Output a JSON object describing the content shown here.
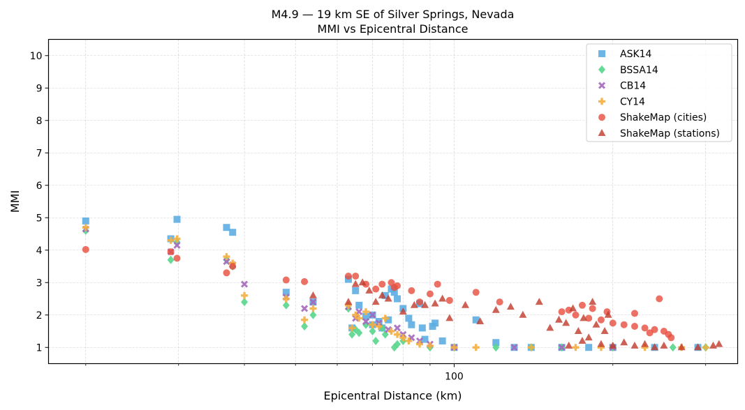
{
  "chart_data": {
    "type": "scatter",
    "title": "M4.9 — 19 km SE of Silver Springs, Nevada",
    "subtitle": "MMI vs Epicentral Distance",
    "xlabel": "Epicentral Distance (km)",
    "ylabel": "MMI",
    "xscale": "log",
    "xlim": [
      17,
      345
    ],
    "ylim": [
      0.5,
      10.5
    ],
    "xticks_major": [
      100
    ],
    "xtick_labels": [
      "100"
    ],
    "xticks_minor": [
      20,
      30,
      40,
      50,
      60,
      70,
      80,
      90,
      200,
      300
    ],
    "yticks": [
      1,
      2,
      3,
      4,
      5,
      6,
      7,
      8,
      9,
      10
    ],
    "ytick_labels": [
      "1",
      "2",
      "3",
      "4",
      "5",
      "6",
      "7",
      "8",
      "9",
      "10"
    ],
    "grid": true,
    "legend_position": "top-right",
    "series": [
      {
        "name": "ASK14",
        "marker": "square",
        "color": "#5DADE2",
        "points": [
          [
            20,
            4.9
          ],
          [
            29,
            4.35
          ],
          [
            29.8,
            4.95
          ],
          [
            37,
            4.7
          ],
          [
            38,
            4.55
          ],
          [
            48,
            2.7
          ],
          [
            54,
            2.4
          ],
          [
            63,
            3.1
          ],
          [
            65,
            2.75
          ],
          [
            66,
            2.3
          ],
          [
            68,
            1.95
          ],
          [
            70,
            1.7
          ],
          [
            72,
            1.8
          ],
          [
            73,
            1.6
          ],
          [
            74,
            2.6
          ],
          [
            75,
            1.85
          ],
          [
            77,
            2.7
          ],
          [
            78,
            2.5
          ],
          [
            80,
            2.2
          ],
          [
            82,
            1.9
          ],
          [
            83,
            1.7
          ],
          [
            86,
            2.35
          ],
          [
            87,
            1.6
          ],
          [
            88,
            1.25
          ],
          [
            91,
            1.65
          ],
          [
            92,
            1.75
          ],
          [
            95,
            1.2
          ],
          [
            100,
            1.0
          ],
          [
            110,
            1.85
          ],
          [
            120,
            1.15
          ],
          [
            64,
            1.6
          ],
          [
            70,
            2.0
          ],
          [
            76,
            2.8
          ],
          [
            130,
            1.0
          ],
          [
            140,
            1.0
          ],
          [
            160,
            1.0
          ],
          [
            180,
            1.0
          ],
          [
            200,
            1.0
          ],
          [
            240,
            1.0
          ],
          [
            290,
            1.0
          ]
        ]
      },
      {
        "name": "BSSA14",
        "marker": "diamond",
        "color": "#58D68D",
        "points": [
          [
            20,
            4.6
          ],
          [
            29,
            3.7
          ],
          [
            29.8,
            4.25
          ],
          [
            37,
            3.7
          ],
          [
            38,
            3.5
          ],
          [
            40,
            2.4
          ],
          [
            48,
            2.3
          ],
          [
            52,
            1.65
          ],
          [
            54,
            2.0
          ],
          [
            63,
            2.2
          ],
          [
            64,
            1.4
          ],
          [
            65,
            1.55
          ],
          [
            66,
            1.45
          ],
          [
            68,
            1.7
          ],
          [
            70,
            1.5
          ],
          [
            71,
            1.2
          ],
          [
            73,
            1.6
          ],
          [
            74,
            1.4
          ],
          [
            77,
            1.0
          ],
          [
            78,
            1.1
          ],
          [
            80,
            1.2
          ],
          [
            90,
            1.0
          ],
          [
            100,
            1.0
          ],
          [
            120,
            1.0
          ],
          [
            140,
            1.0
          ],
          [
            160,
            1.0
          ],
          [
            200,
            1.0
          ],
          [
            260,
            1.0
          ],
          [
            300,
            1.0
          ]
        ]
      },
      {
        "name": "CB14",
        "marker": "x",
        "color": "#A569BD",
        "points": [
          [
            20,
            4.65
          ],
          [
            29,
            3.95
          ],
          [
            29.8,
            4.15
          ],
          [
            37,
            3.65
          ],
          [
            38,
            3.55
          ],
          [
            40,
            2.95
          ],
          [
            48,
            2.55
          ],
          [
            52,
            2.2
          ],
          [
            54,
            2.4
          ],
          [
            63,
            2.25
          ],
          [
            65,
            1.9
          ],
          [
            66,
            2.1
          ],
          [
            68,
            1.8
          ],
          [
            70,
            2.0
          ],
          [
            72,
            1.75
          ],
          [
            75,
            1.55
          ],
          [
            78,
            1.6
          ],
          [
            80,
            1.4
          ],
          [
            83,
            1.3
          ],
          [
            86,
            1.2
          ],
          [
            90,
            1.1
          ],
          [
            100,
            1.0
          ],
          [
            130,
            1.0
          ],
          [
            160,
            1.0
          ],
          [
            200,
            1.0
          ]
        ]
      },
      {
        "name": "CY14",
        "marker": "plus",
        "color": "#F5B041",
        "points": [
          [
            20,
            4.7
          ],
          [
            29,
            4.3
          ],
          [
            29.8,
            4.35
          ],
          [
            37,
            3.8
          ],
          [
            38,
            3.6
          ],
          [
            40,
            2.6
          ],
          [
            48,
            2.5
          ],
          [
            52,
            1.85
          ],
          [
            54,
            2.2
          ],
          [
            63,
            2.3
          ],
          [
            64,
            1.6
          ],
          [
            65,
            2.0
          ],
          [
            66,
            1.9
          ],
          [
            68,
            2.1
          ],
          [
            70,
            1.7
          ],
          [
            72,
            1.65
          ],
          [
            74,
            1.9
          ],
          [
            76,
            1.5
          ],
          [
            78,
            1.4
          ],
          [
            80,
            1.3
          ],
          [
            82,
            1.2
          ],
          [
            86,
            1.1
          ],
          [
            90,
            1.05
          ],
          [
            100,
            1.0
          ],
          [
            110,
            1.0
          ],
          [
            140,
            1.0
          ],
          [
            170,
            1.0
          ],
          [
            190,
            1.0
          ],
          [
            230,
            1.0
          ],
          [
            270,
            1.0
          ],
          [
            300,
            1.0
          ]
        ]
      },
      {
        "name": "ShakeMap (cities)",
        "marker": "circle",
        "color": "#E74C3C",
        "points": [
          [
            20,
            4.02
          ],
          [
            29,
            3.95
          ],
          [
            29.8,
            3.75
          ],
          [
            37,
            3.3
          ],
          [
            38,
            3.5
          ],
          [
            48,
            3.08
          ],
          [
            52,
            3.03
          ],
          [
            63,
            3.2
          ],
          [
            65,
            3.2
          ],
          [
            68,
            2.95
          ],
          [
            71,
            2.8
          ],
          [
            73,
            2.95
          ],
          [
            76,
            3.0
          ],
          [
            77,
            2.85
          ],
          [
            78,
            2.9
          ],
          [
            83,
            2.75
          ],
          [
            86,
            2.4
          ],
          [
            90,
            2.65
          ],
          [
            93,
            2.95
          ],
          [
            98,
            2.45
          ],
          [
            110,
            2.7
          ],
          [
            122,
            2.4
          ],
          [
            160,
            2.1
          ],
          [
            165,
            2.15
          ],
          [
            170,
            2.0
          ],
          [
            180,
            1.9
          ],
          [
            190,
            1.85
          ],
          [
            200,
            1.75
          ],
          [
            210,
            1.7
          ],
          [
            220,
            1.65
          ],
          [
            230,
            1.6
          ],
          [
            240,
            1.55
          ],
          [
            245,
            2.5
          ],
          [
            250,
            1.5
          ],
          [
            255,
            1.4
          ],
          [
            258,
            1.3
          ],
          [
            220,
            2.05
          ],
          [
            195,
            2.1
          ],
          [
            175,
            2.3
          ],
          [
            183,
            2.2
          ],
          [
            235,
            1.45
          ]
        ]
      },
      {
        "name": "ShakeMap (stations)",
        "marker": "triangle",
        "color": "#C0392B",
        "points": [
          [
            54,
            2.6
          ],
          [
            63,
            2.4
          ],
          [
            65,
            2.95
          ],
          [
            67,
            3.0
          ],
          [
            69,
            2.75
          ],
          [
            71,
            2.4
          ],
          [
            73,
            2.6
          ],
          [
            75,
            2.5
          ],
          [
            80,
            2.1
          ],
          [
            84,
            2.3
          ],
          [
            88,
            2.3
          ],
          [
            92,
            2.35
          ],
          [
            95,
            2.5
          ],
          [
            98,
            1.9
          ],
          [
            105,
            2.3
          ],
          [
            112,
            1.8
          ],
          [
            120,
            2.15
          ],
          [
            128,
            2.25
          ],
          [
            135,
            2.0
          ],
          [
            145,
            2.4
          ],
          [
            152,
            1.6
          ],
          [
            158,
            1.85
          ],
          [
            163,
            1.75
          ],
          [
            168,
            2.2
          ],
          [
            172,
            1.5
          ],
          [
            176,
            1.9
          ],
          [
            180,
            1.3
          ],
          [
            183,
            2.4
          ],
          [
            186,
            1.7
          ],
          [
            190,
            1.1
          ],
          [
            193,
            1.5
          ],
          [
            196,
            2.0
          ],
          [
            200,
            1.05
          ],
          [
            210,
            1.15
          ],
          [
            220,
            1.05
          ],
          [
            230,
            1.1
          ],
          [
            240,
            1.0
          ],
          [
            250,
            1.05
          ],
          [
            270,
            1.0
          ],
          [
            290,
            1.0
          ],
          [
            310,
            1.05
          ],
          [
            318,
            1.1
          ],
          [
            175,
            1.2
          ],
          [
            165,
            1.05
          ]
        ]
      }
    ]
  }
}
